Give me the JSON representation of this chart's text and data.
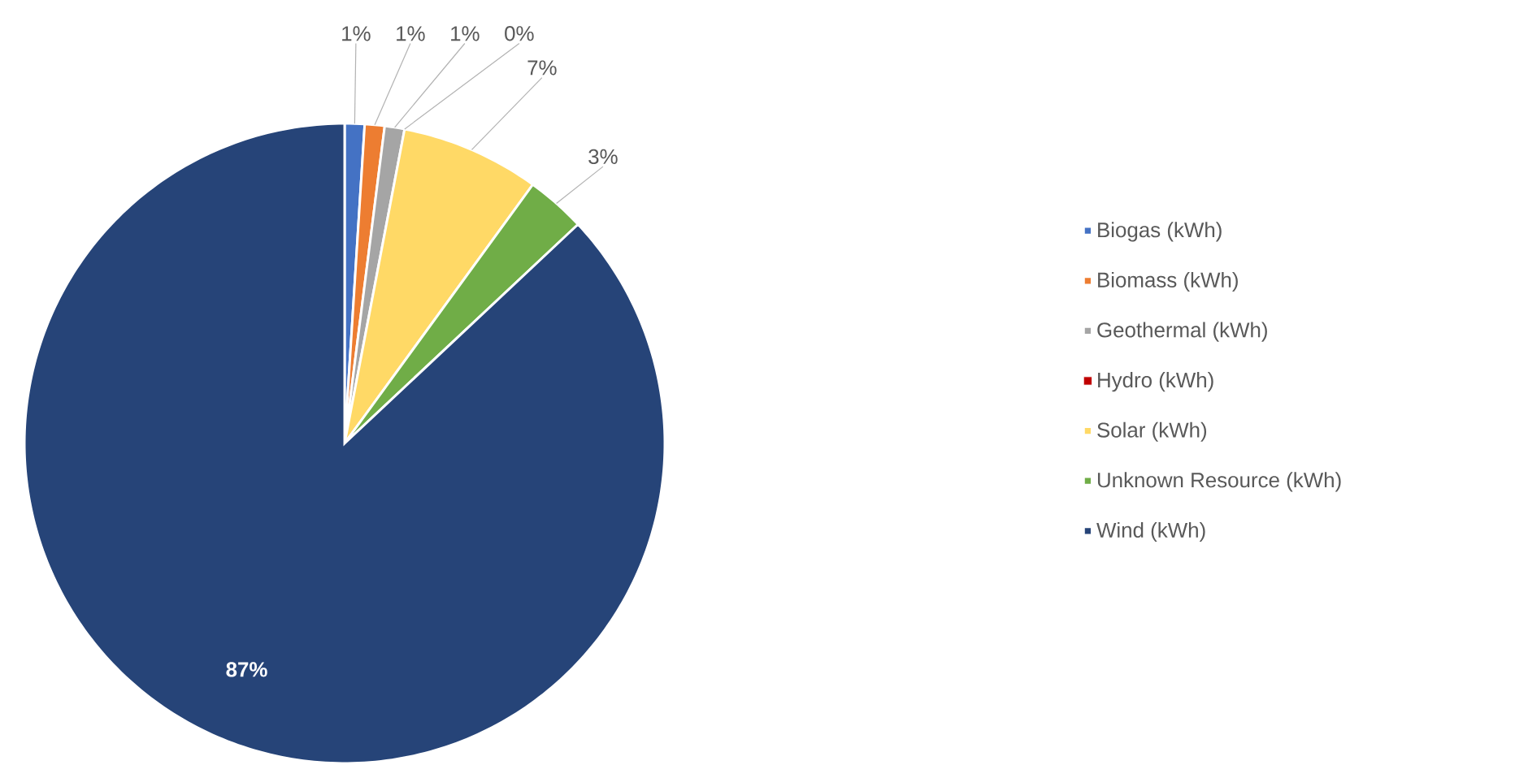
{
  "chart_data": {
    "type": "pie",
    "categories": [
      "Biogas (kWh)",
      "Biomass (kWh)",
      "Geothermal (kWh)",
      "Hydro (kWh)",
      "Solar (kWh)",
      "Unknown Resource (kWh)",
      "Wind (kWh)"
    ],
    "values": [
      1,
      1,
      1,
      0,
      7,
      3,
      87
    ],
    "colors": [
      "#4472c4",
      "#ed7d31",
      "#a5a5a5",
      "#c00000",
      "#ffd966",
      "#70ad47",
      "#264478"
    ],
    "value_labels": [
      "1%",
      "1%",
      "1%",
      "0%",
      "7%",
      "3%",
      "87%"
    ],
    "legend": "right"
  }
}
